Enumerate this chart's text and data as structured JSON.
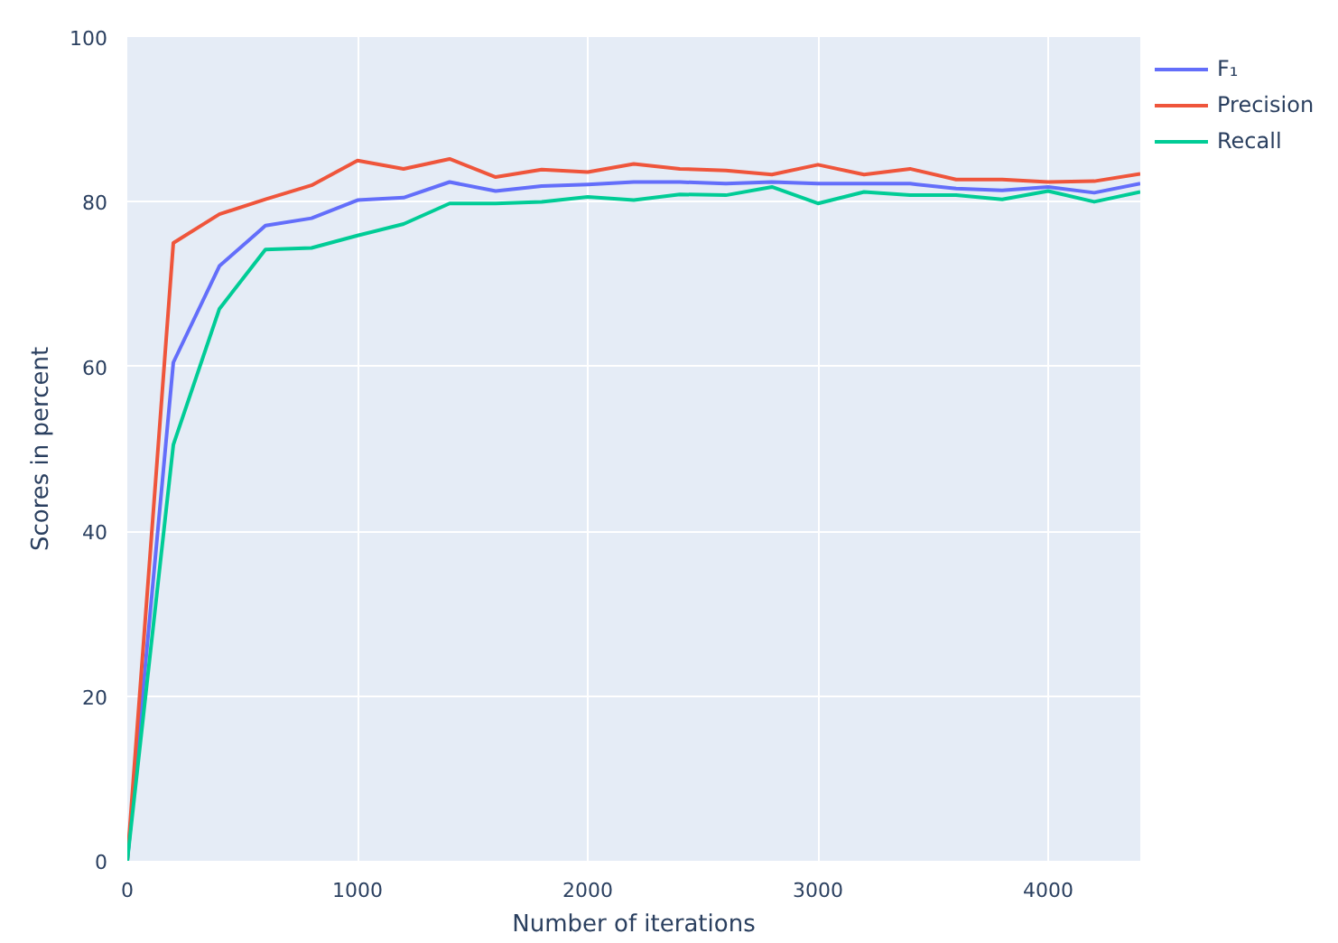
{
  "chart_data": {
    "type": "line",
    "xlabel": "Number of iterations",
    "ylabel": "Scores in percent",
    "x": [
      0,
      200,
      400,
      600,
      800,
      1000,
      1200,
      1400,
      1600,
      1800,
      2000,
      2200,
      2400,
      2600,
      2800,
      3000,
      3200,
      3400,
      3600,
      3800,
      4000,
      4200,
      4400
    ],
    "series": [
      {
        "name": "F₁",
        "color": "#636efa",
        "values": [
          0,
          60.5,
          72.2,
          77.1,
          78,
          80.2,
          80.5,
          82.4,
          81.3,
          81.9,
          82.1,
          82.4,
          82.4,
          82.2,
          82.4,
          82.2,
          82.2,
          82.2,
          81.6,
          81.4,
          81.8,
          81.1,
          82.2
        ]
      },
      {
        "name": "Precision",
        "color": "#ef553b",
        "values": [
          0,
          75,
          78.5,
          80.3,
          82,
          85,
          84,
          85.2,
          83,
          83.9,
          83.6,
          84.6,
          84,
          83.8,
          83.3,
          84.5,
          83.3,
          84,
          82.7,
          82.7,
          82.4,
          82.5,
          83.4
        ]
      },
      {
        "name": "Recall",
        "color": "#00cc96",
        "values": [
          0,
          50.5,
          67,
          74.2,
          74.4,
          75.9,
          77.3,
          79.8,
          79.8,
          80,
          80.6,
          80.2,
          80.9,
          80.8,
          81.8,
          79.8,
          81.2,
          80.8,
          80.8,
          80.3,
          81.3,
          80,
          81.2
        ]
      }
    ],
    "xlim": [
      0,
      4400
    ],
    "ylim": [
      0,
      100
    ],
    "xticks": [
      0,
      1000,
      2000,
      3000,
      4000
    ],
    "yticks": [
      0,
      20,
      40,
      60,
      80,
      100
    ],
    "grid": true,
    "legend": "top right",
    "line_style": "solid"
  }
}
